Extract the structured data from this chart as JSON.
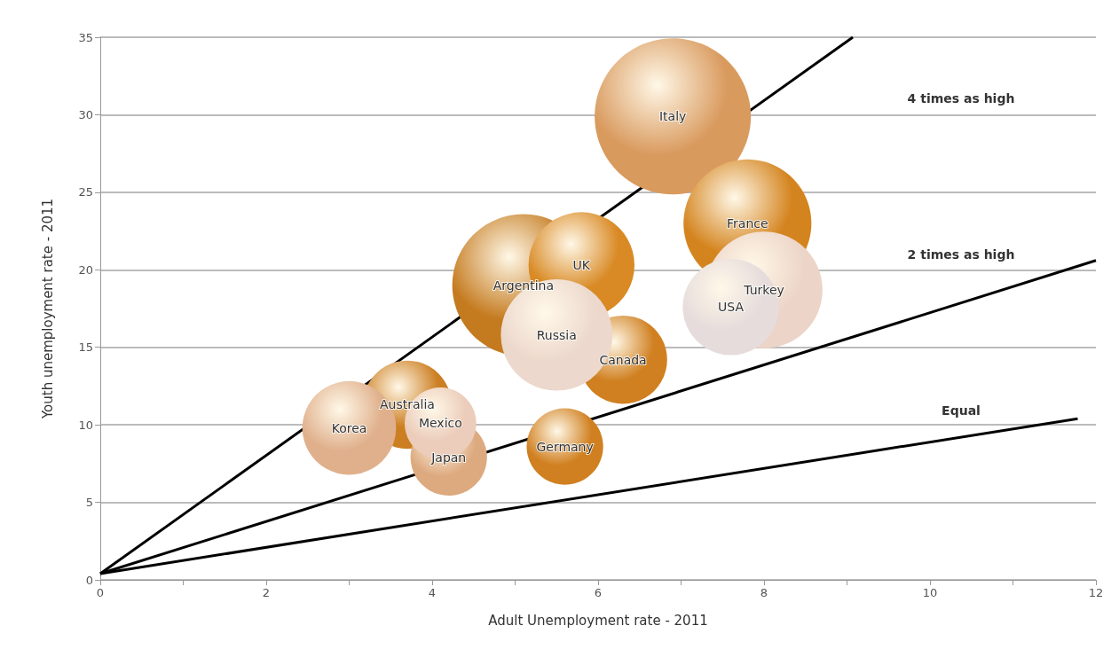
{
  "chart_data": {
    "type": "bubble",
    "xlabel": "Adult Unemployment rate - 2011",
    "ylabel": "Youth unemployment rate - 2011",
    "xlim": [
      0,
      12
    ],
    "xticks": [
      0,
      {
        "value": 1,
        "label": null
      },
      2,
      {
        "value": 3,
        "label": null
      },
      4,
      {
        "value": 5,
        "label": null
      },
      6,
      {
        "value": 7,
        "label": null
      },
      8,
      {
        "value": 9,
        "label": null
      },
      10,
      {
        "value": 11,
        "label": null
      },
      12
    ],
    "ylim": [
      0,
      35
    ],
    "yticks": [
      0,
      5,
      10,
      15,
      20,
      25,
      30,
      35
    ],
    "grid": "y",
    "annotations": [
      "4 times as high",
      "2 times as high",
      "Equal"
    ],
    "series": [
      {
        "name": "Italy",
        "color": "#d99a5e",
        "x": [
          6.9
        ],
        "values": [
          29.9
        ],
        "sizes": [
          1
        ]
      },
      {
        "name": "France",
        "color": "#d4841e",
        "x": [
          7.8
        ],
        "values": [
          23.0
        ],
        "sizes": [
          0.67
        ]
      },
      {
        "name": "Turkey",
        "color": "#ecd4c8",
        "x": [
          8.0
        ],
        "values": [
          18.7
        ],
        "sizes": [
          0.56
        ]
      },
      {
        "name": "USA",
        "color": "#e6dcdc",
        "x": [
          7.6
        ],
        "values": [
          17.6
        ],
        "sizes": [
          0.38
        ]
      },
      {
        "name": "Argentina",
        "color": "#c47a1e",
        "x": [
          5.1
        ],
        "values": [
          19.0
        ],
        "sizes": [
          0.83
        ]
      },
      {
        "name": "UK",
        "color": "#d98a25",
        "x": [
          5.8
        ],
        "values": [
          20.3
        ],
        "sizes": [
          0.46
        ]
      },
      {
        "name": "Canada",
        "color": "#d08020",
        "x": [
          6.3
        ],
        "values": [
          14.2
        ],
        "sizes": [
          0.32
        ]
      },
      {
        "name": "Russia",
        "color": "#ecd8cc",
        "x": [
          5.5
        ],
        "values": [
          15.8
        ],
        "sizes": [
          0.51
        ]
      },
      {
        "name": "Australia",
        "color": "#cc7f22",
        "x": [
          3.7
        ],
        "values": [
          11.3
        ],
        "sizes": [
          0.32
        ]
      },
      {
        "name": "Korea",
        "color": "#e0b08c",
        "x": [
          3.0
        ],
        "values": [
          9.8
        ],
        "sizes": [
          0.36
        ]
      },
      {
        "name": "Japan",
        "color": "#ddaa80",
        "x": [
          4.2
        ],
        "values": [
          7.9
        ],
        "sizes": [
          0.24
        ]
      },
      {
        "name": "Mexico",
        "color": "#eccdbb",
        "x": [
          4.1
        ],
        "values": [
          10.1
        ],
        "sizes": [
          0.21
        ]
      },
      {
        "name": "Germany",
        "color": "#d08020",
        "x": [
          5.6
        ],
        "values": [
          8.6
        ],
        "sizes": [
          0.24
        ]
      },
      {
        "type": "line",
        "color": "#000000",
        "x": [
          0,
          9.07
        ],
        "values": [
          0.4,
          35
        ]
      },
      {
        "type": "line",
        "color": "#000000",
        "x": [
          0,
          12
        ],
        "values": [
          0.4,
          20.6
        ]
      },
      {
        "type": "line",
        "color": "#000000",
        "x": [
          0,
          11.78
        ],
        "values": [
          0.4,
          10.4
        ]
      }
    ]
  }
}
